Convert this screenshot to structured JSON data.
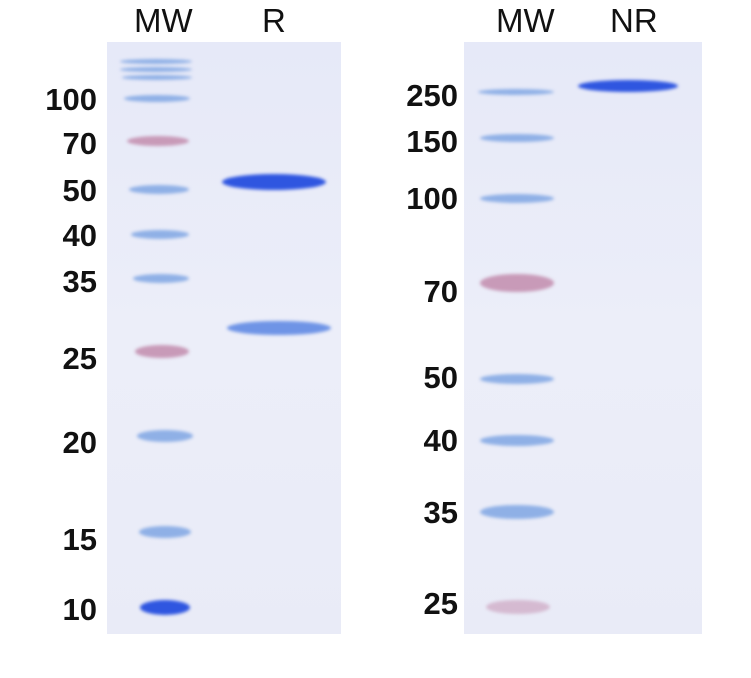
{
  "left_gel": {
    "lanes": [
      "MW",
      "R"
    ],
    "markers": [
      "100",
      "70",
      "50",
      "40",
      "35",
      "25",
      "20",
      "15",
      "10"
    ]
  },
  "right_gel": {
    "lanes": [
      "MW",
      "NR"
    ],
    "markers": [
      "250",
      "150",
      "100",
      "70",
      "50",
      "40",
      "35",
      "25"
    ]
  },
  "colors": {
    "band_strong": "#2f56e0",
    "ladder_blue": "#8fb0e6",
    "ladder_pink": "#c89ab8",
    "gel_bg": "#e9ebf7"
  }
}
